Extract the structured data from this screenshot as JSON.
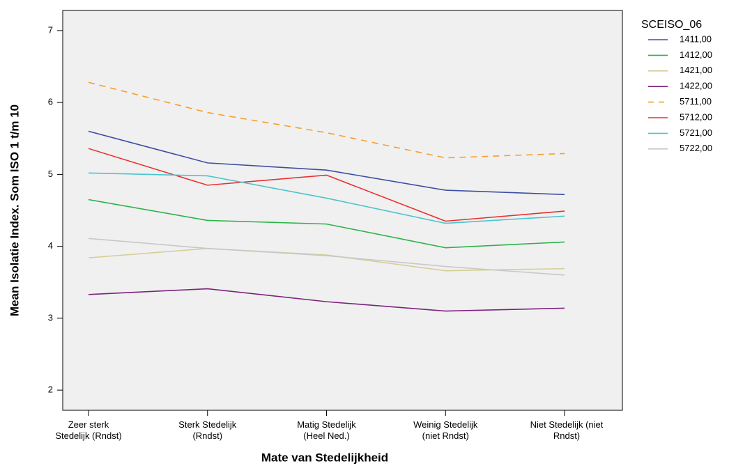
{
  "chart_data": {
    "type": "line",
    "x_label": "Mate van Stedelijkheid",
    "y_label": "Mean Isolatie Index. Som ISO 1 t/m 10",
    "legend_title": "SCEISO_06",
    "legend_position": "right",
    "categories": [
      "Zeer sterk\nStedelijk (Rndst)",
      "Sterk Stedelijk\n(Rndst)",
      "Matig Stedelijk\n(Heel Ned.)",
      "Weinig Stedelijk\n(niet Rndst)",
      "Niet Stedelijk (niet\nRndst)"
    ],
    "ylim": [
      1.72,
      7.28
    ],
    "yticks": [
      2,
      3,
      4,
      5,
      6,
      7
    ],
    "series": [
      {
        "name": "1411,00",
        "color": "#3e4fa3",
        "values": [
          5.6,
          5.16,
          5.06,
          4.78,
          4.72
        ]
      },
      {
        "name": "1412,00",
        "color": "#2db34a",
        "values": [
          4.65,
          4.36,
          4.31,
          3.98,
          4.06
        ]
      },
      {
        "name": "1421,00",
        "color": "#d4cf96",
        "values": [
          3.84,
          3.97,
          3.88,
          3.66,
          3.69
        ]
      },
      {
        "name": "1422,00",
        "color": "#7b237d",
        "values": [
          3.33,
          3.41,
          3.23,
          3.1,
          3.14
        ]
      },
      {
        "name": "5711,00",
        "color": "#f5a02a",
        "style": "dashed",
        "values": [
          6.28,
          5.86,
          5.58,
          5.23,
          5.29
        ]
      },
      {
        "name": "5712,00",
        "color": "#e8312f",
        "values": [
          5.36,
          4.85,
          4.99,
          4.35,
          4.49
        ]
      },
      {
        "name": "5721,00",
        "color": "#4cc4cc",
        "values": [
          5.02,
          4.98,
          4.67,
          4.32,
          4.42
        ]
      },
      {
        "name": "5722,00",
        "color": "#c8c8c8",
        "values": [
          4.11,
          3.97,
          3.87,
          3.72,
          3.6
        ]
      }
    ]
  }
}
